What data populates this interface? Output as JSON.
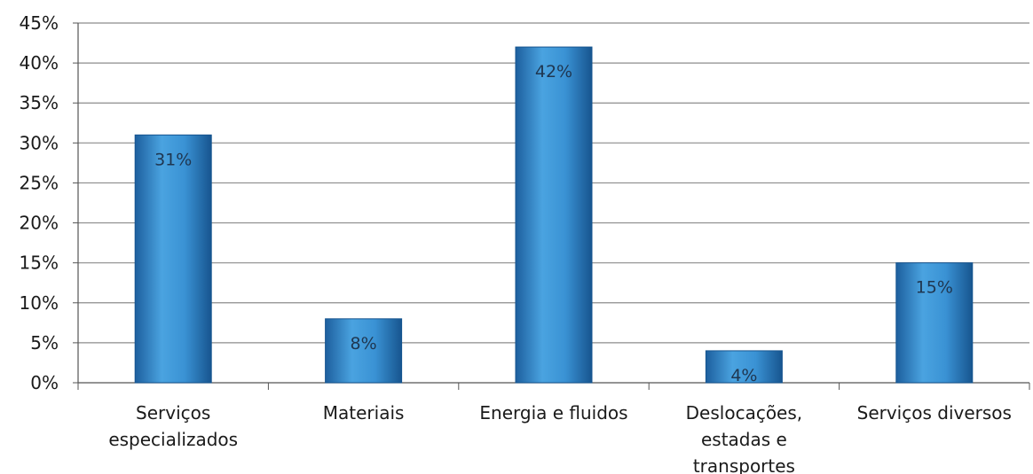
{
  "chart_data": {
    "type": "bar",
    "categories": [
      [
        "Serviços",
        "especializados"
      ],
      [
        "Materiais"
      ],
      [
        "Energia e fluidos"
      ],
      [
        "Deslocações,",
        "estadas e",
        "transportes"
      ],
      [
        "Serviços diversos"
      ]
    ],
    "values": [
      31,
      8,
      42,
      4,
      15
    ],
    "data_labels": [
      "31%",
      "8%",
      "42%",
      "4%",
      "15%"
    ],
    "y_ticks": [
      "0%",
      "5%",
      "10%",
      "15%",
      "20%",
      "25%",
      "30%",
      "35%",
      "40%",
      "45%"
    ],
    "ylim": [
      0,
      45
    ],
    "grid": true,
    "legend": "none",
    "title": "",
    "xlabel": "",
    "ylabel": ""
  },
  "colors": {
    "bar_top": "#5aaee6",
    "bar_mid": "#2b7fc6",
    "bar_edge": "#15548f",
    "grid": "#8c8c8c",
    "axis": "#555555"
  }
}
